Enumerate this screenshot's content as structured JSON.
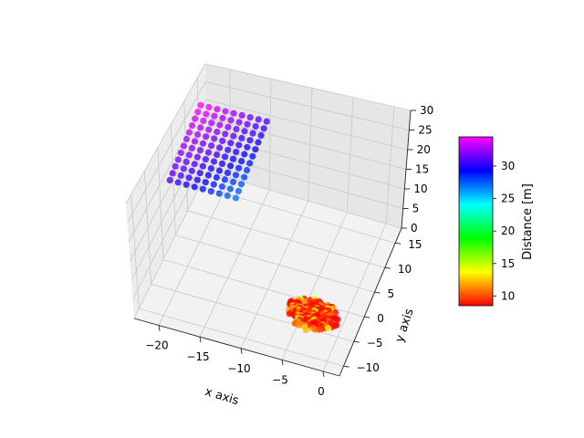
{
  "chart_data": {
    "type": "scatter",
    "projection": "3d",
    "title": "",
    "xlabel": "x axis",
    "ylabel": "y axis",
    "zlabel": "",
    "xlim": [
      -23,
      2
    ],
    "ylim": [
      -12,
      18
    ],
    "zlim": [
      0,
      30
    ],
    "xticks": [
      -20,
      -15,
      -10,
      -5,
      0
    ],
    "yticks": [
      -10,
      -5,
      0,
      5,
      10,
      15
    ],
    "zticks": [
      0,
      5,
      10,
      15,
      20,
      25,
      30
    ],
    "grid": true,
    "colorbar": {
      "label": "Distance [m]",
      "colormap": "gist_rainbow",
      "range": [
        8.5,
        34.5
      ],
      "ticks": [
        10,
        15,
        20,
        25,
        30
      ],
      "placement": "right"
    },
    "marker_size_px": 3.6,
    "marker_alpha": 0.78,
    "series": [
      {
        "x_range": [
          -21,
          -13
        ],
        "y_range": [
          -2,
          10
        ],
        "z_range": [
          25,
          30
        ],
        "grid_points": [
          9,
          12
        ],
        "distance_range": [
          27,
          34.5
        ]
      },
      {
        "x_center": -3.5,
        "y_center": -3.0,
        "x_spread": 3.0,
        "y_spread": 2.5,
        "z_max": 2.5,
        "n_points": 220,
        "distance_range": [
          8.5,
          15
        ]
      }
    ]
  }
}
